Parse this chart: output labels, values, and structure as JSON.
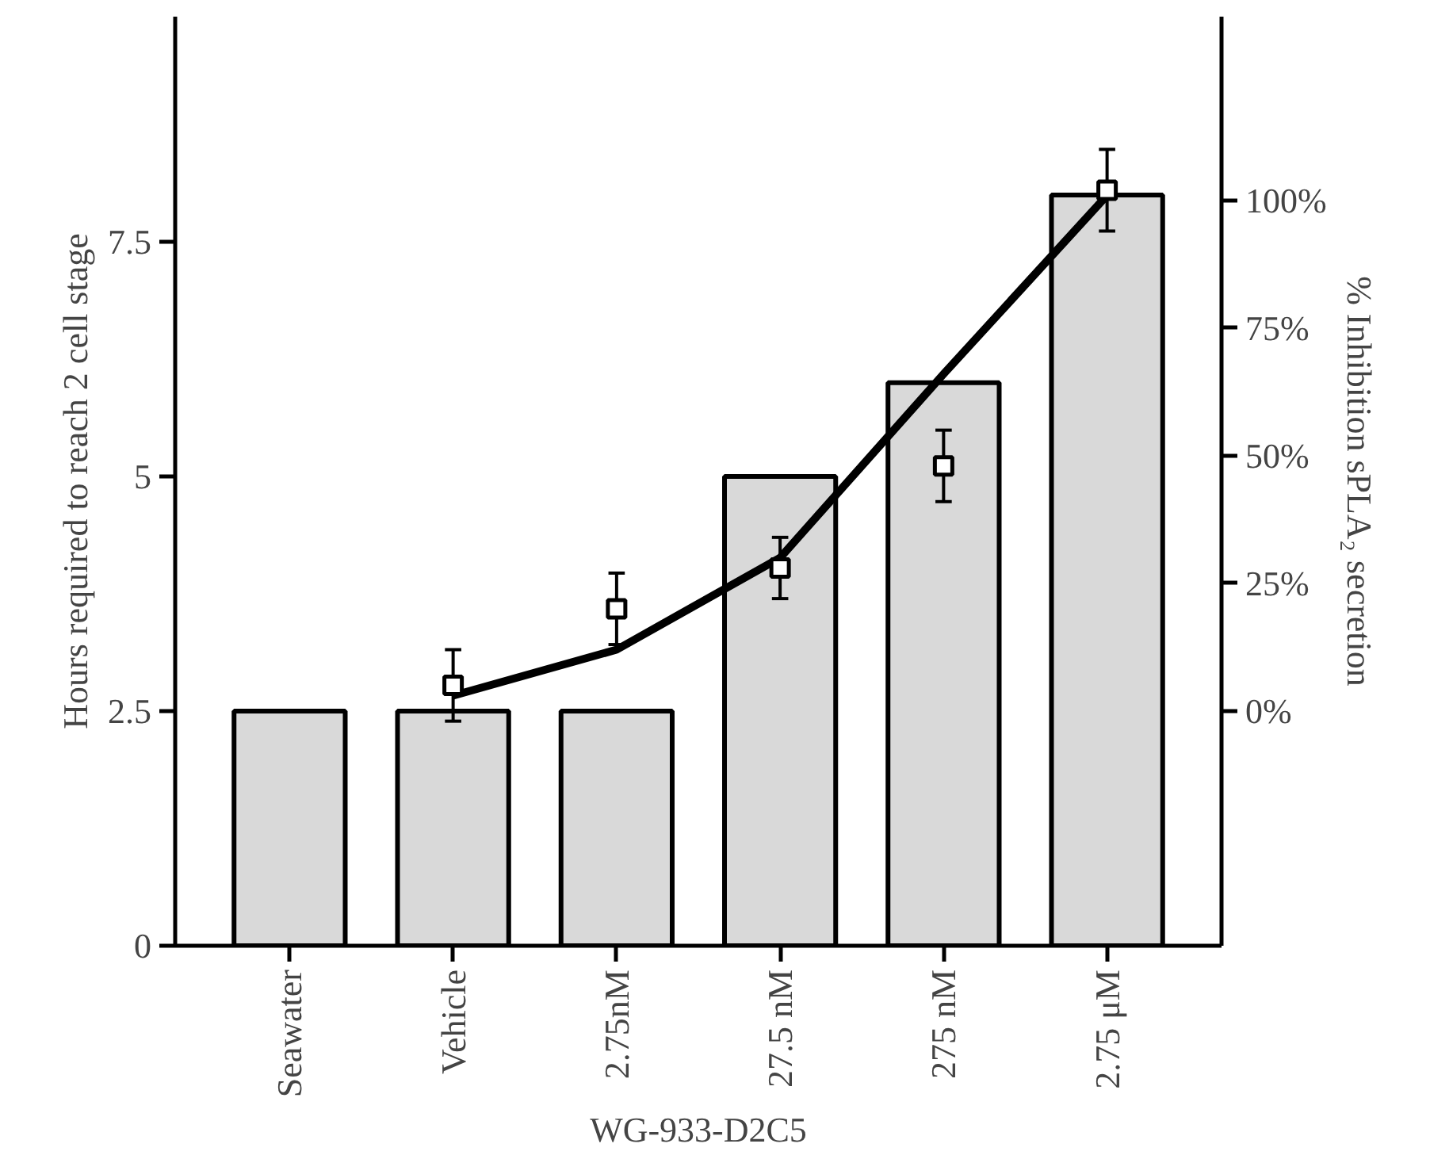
{
  "chart_data": {
    "type": "bar",
    "xlabel": "WG-933-D2C5",
    "ylabel": "Hours required to reach 2 cell stage",
    "y2label": "% Inhibition sPLA₂ secretion",
    "categories": [
      "Seawater",
      "Vehicle",
      "2.75nM",
      "27.5 nM",
      "275 nM",
      "2.75 μM"
    ],
    "series": [
      {
        "color": "#d9d9d9",
        "values": [
          2.5,
          2.5,
          2.5,
          5,
          6,
          8
        ]
      },
      {
        "type": "line",
        "axis": "y2",
        "color": "#000000",
        "x": [
          "Vehicle",
          "2.75nM",
          "27.5 nM",
          "275 nM",
          "2.75 μM"
        ],
        "values": [
          3,
          12,
          30,
          66,
          101
        ],
        "line_style": "solid",
        "marker": "none"
      },
      {
        "type": "scatter",
        "axis": "y2",
        "color": "#000000",
        "marker": "square",
        "x": [
          "Vehicle",
          "2.75nM",
          "27.5 nM",
          "275 nM",
          "2.75 μM"
        ],
        "values": [
          5,
          20,
          28,
          48,
          102
        ],
        "errors": [
          7,
          7,
          6,
          7,
          8
        ]
      }
    ],
    "ylim": [
      0,
      9.9
    ],
    "yticks": [
      0,
      2.5,
      5,
      7.5
    ],
    "y2lim": [
      -46,
      136
    ],
    "y2ticks": [
      {
        "value": 0,
        "label": "0%"
      },
      {
        "value": 25,
        "label": "25%"
      },
      {
        "value": 50,
        "label": "50%"
      },
      {
        "value": 75,
        "label": "75%"
      },
      {
        "value": 100,
        "label": "100%"
      }
    ],
    "grid": false
  }
}
